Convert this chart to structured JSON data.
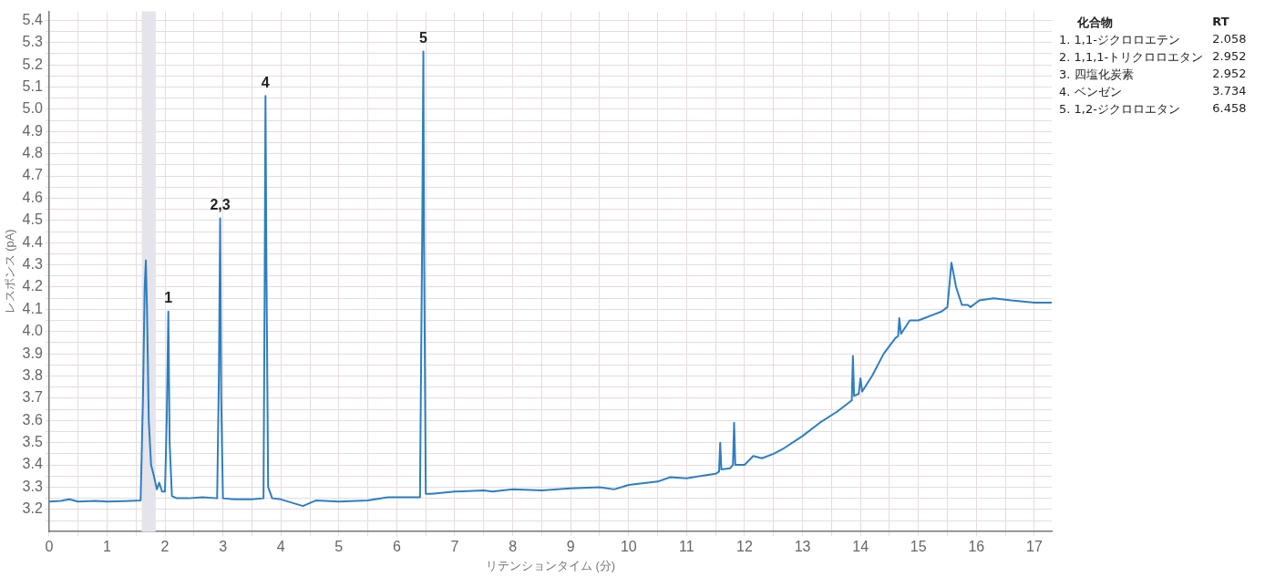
{
  "chart_data": {
    "type": "line",
    "xlabel": "リテンションタイム (分)",
    "ylabel": "レスポンス (pA)",
    "x": [
      0,
      0.2,
      0.35,
      0.5,
      0.8,
      1.0,
      1.3,
      1.58,
      1.62,
      1.65,
      1.67,
      1.69,
      1.72,
      1.76,
      1.8,
      1.86,
      1.9,
      1.95,
      2.0,
      2.03,
      2.058,
      2.08,
      2.12,
      2.2,
      2.4,
      2.65,
      2.9,
      2.93,
      2.952,
      2.97,
      3.0,
      3.2,
      3.5,
      3.7,
      3.72,
      3.734,
      3.75,
      3.78,
      3.85,
      4.0,
      4.38,
      4.6,
      5.0,
      5.5,
      5.85,
      6.2,
      6.4,
      6.44,
      6.458,
      6.47,
      6.5,
      6.6,
      7.0,
      7.5,
      7.65,
      8.0,
      8.5,
      9.0,
      9.5,
      9.75,
      10.0,
      10.5,
      10.72,
      11.0,
      11.5,
      11.56,
      11.58,
      11.6,
      11.75,
      11.8,
      11.82,
      11.84,
      12.0,
      12.15,
      12.3,
      12.5,
      12.65,
      13.0,
      13.3,
      13.6,
      13.85,
      13.87,
      13.89,
      13.97,
      14.0,
      14.03,
      14.2,
      14.4,
      14.6,
      14.65,
      14.67,
      14.7,
      14.85,
      15.0,
      15.2,
      15.4,
      15.5,
      15.57,
      15.65,
      15.75,
      15.85,
      15.9,
      16.0,
      16.05,
      16.3,
      16.6,
      17.0,
      17.3
    ],
    "series": [
      {
        "color": "#2f7ebf",
        "values": [
          3.235,
          3.238,
          3.245,
          3.235,
          3.238,
          3.235,
          3.237,
          3.24,
          3.7,
          4.2,
          4.32,
          4.1,
          3.6,
          3.4,
          3.36,
          3.29,
          3.32,
          3.28,
          3.28,
          3.6,
          4.09,
          3.5,
          3.26,
          3.25,
          3.25,
          3.255,
          3.25,
          3.8,
          4.51,
          3.7,
          3.25,
          3.245,
          3.245,
          3.25,
          4.2,
          5.06,
          4.3,
          3.3,
          3.25,
          3.245,
          3.215,
          3.24,
          3.235,
          3.24,
          3.255,
          3.255,
          3.255,
          4.5,
          5.26,
          4.4,
          3.27,
          3.27,
          3.28,
          3.285,
          3.28,
          3.29,
          3.285,
          3.295,
          3.3,
          3.29,
          3.31,
          3.325,
          3.345,
          3.34,
          3.36,
          3.37,
          3.5,
          3.38,
          3.385,
          3.4,
          3.59,
          3.4,
          3.4,
          3.44,
          3.43,
          3.45,
          3.47,
          3.53,
          3.59,
          3.64,
          3.69,
          3.89,
          3.71,
          3.72,
          3.79,
          3.73,
          3.8,
          3.9,
          3.97,
          3.98,
          4.06,
          3.99,
          4.05,
          4.05,
          4.07,
          4.09,
          4.11,
          4.31,
          4.2,
          4.12,
          4.12,
          4.11,
          4.13,
          4.14,
          4.15,
          4.14,
          4.13,
          4.13
        ]
      }
    ],
    "xlim": [
      0,
      17.3
    ],
    "ylim": [
      3.1,
      5.44
    ],
    "xticks": [
      0,
      {
        "value": 0.5,
        "label": null
      },
      1,
      {
        "value": 1.5,
        "label": null
      },
      2,
      {
        "value": 2.5,
        "label": null
      },
      3,
      {
        "value": 3.5,
        "label": null
      },
      4,
      {
        "value": 4.5,
        "label": null
      },
      5,
      {
        "value": 5.5,
        "label": null
      },
      6,
      {
        "value": 6.5,
        "label": null
      },
      7,
      {
        "value": 7.5,
        "label": null
      },
      8,
      {
        "value": 8.5,
        "label": null
      },
      9,
      {
        "value": 9.5,
        "label": null
      },
      10,
      {
        "value": 10.5,
        "label": null
      },
      11,
      {
        "value": 11.5,
        "label": null
      },
      12,
      {
        "value": 12.5,
        "label": null
      },
      13,
      {
        "value": 13.5,
        "label": null
      },
      14,
      {
        "value": 14.5,
        "label": null
      },
      15,
      {
        "value": 15.5,
        "label": null
      },
      16,
      {
        "value": 16.5,
        "label": null
      },
      17
    ],
    "yticks": [
      {
        "value": 3.15,
        "label": null
      },
      {
        "value": 3.2,
        "label": "3.2"
      },
      {
        "value": 3.25,
        "label": null
      },
      {
        "value": 3.3,
        "label": "3.3"
      },
      {
        "value": 3.35,
        "label": null
      },
      {
        "value": 3.4,
        "label": "3.4"
      },
      {
        "value": 3.45,
        "label": null
      },
      {
        "value": 3.5,
        "label": "3.5"
      },
      {
        "value": 3.55,
        "label": null
      },
      {
        "value": 3.6,
        "label": "3.6"
      },
      {
        "value": 3.65,
        "label": null
      },
      {
        "value": 3.7,
        "label": "3.7"
      },
      {
        "value": 3.75,
        "label": null
      },
      {
        "value": 3.8,
        "label": "3.8"
      },
      {
        "value": 3.85,
        "label": null
      },
      {
        "value": 3.9,
        "label": "3.9"
      },
      {
        "value": 3.95,
        "label": null
      },
      {
        "value": 4.0,
        "label": "4.0"
      },
      {
        "value": 4.05,
        "label": null
      },
      {
        "value": 4.1,
        "label": "4.1"
      },
      {
        "value": 4.15,
        "label": null
      },
      {
        "value": 4.2,
        "label": "4.2"
      },
      {
        "value": 4.25,
        "label": null
      },
      {
        "value": 4.3,
        "label": "4.3"
      },
      {
        "value": 4.35,
        "label": null
      },
      {
        "value": 4.4,
        "label": "4.4"
      },
      {
        "value": 4.45,
        "label": null
      },
      {
        "value": 4.5,
        "label": "4.5"
      },
      {
        "value": 4.55,
        "label": null
      },
      {
        "value": 4.6,
        "label": "4.6"
      },
      {
        "value": 4.65,
        "label": null
      },
      {
        "value": 4.7,
        "label": "4.7"
      },
      {
        "value": 4.75,
        "label": null
      },
      {
        "value": 4.8,
        "label": "4.8"
      },
      {
        "value": 4.85,
        "label": null
      },
      {
        "value": 4.9,
        "label": "4.9"
      },
      {
        "value": 4.95,
        "label": null
      },
      {
        "value": 5.0,
        "label": "5.0"
      },
      {
        "value": 5.05,
        "label": null
      },
      {
        "value": 5.1,
        "label": "5.1"
      },
      {
        "value": 5.15,
        "label": null
      },
      {
        "value": 5.2,
        "label": "5.2"
      },
      {
        "value": 5.25,
        "label": null
      },
      {
        "value": 5.3,
        "label": "5.3"
      },
      {
        "value": 5.35,
        "label": null
      },
      {
        "value": 5.4,
        "label": "5.4"
      }
    ],
    "grid": true,
    "bands": [
      {
        "axis": "x",
        "from": 1.6,
        "to": 1.84,
        "color": "#e4e4ea"
      }
    ],
    "annotations": [
      {
        "text": "1",
        "x": 2.058,
        "y": 4.09
      },
      {
        "text": "2,3",
        "x": 2.952,
        "y": 4.51
      },
      {
        "text": "4",
        "x": 3.734,
        "y": 5.06
      },
      {
        "text": "5",
        "x": 6.458,
        "y": 5.26
      },
      "化合物",
      "RT",
      "1.  1,1-ジクロロエテン",
      "2.058",
      "2.  1,1,1-トリクロロエタン",
      "2.952",
      "3.  四塩化炭素",
      "2.952",
      "4.  ベンゼン",
      "3.734",
      "5.  1,2-ジクロロエタン",
      "6.458"
    ]
  }
}
